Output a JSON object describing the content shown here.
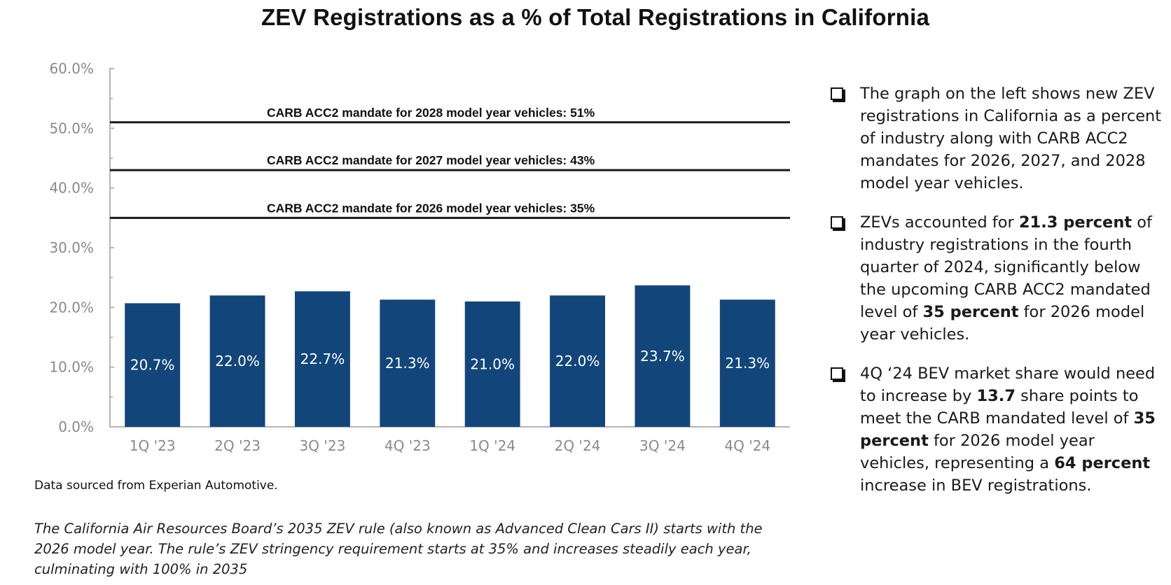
{
  "title": "ZEV Registrations as a % of Total Registrations in California",
  "chart_data": {
    "type": "bar",
    "categories": [
      "1Q '23",
      "2Q '23",
      "3Q '23",
      "4Q '23",
      "1Q '24",
      "2Q '24",
      "3Q '24",
      "4Q '24"
    ],
    "values": [
      20.7,
      22.0,
      22.7,
      21.3,
      21.0,
      22.0,
      23.7,
      21.3
    ],
    "value_labels": [
      "20.7%",
      "22.0%",
      "22.7%",
      "21.3%",
      "21.0%",
      "22.0%",
      "23.7%",
      "21.3%"
    ],
    "ylim": [
      0,
      60
    ],
    "yticks": [
      "0.0%",
      "10.0%",
      "20.0%",
      "30.0%",
      "40.0%",
      "50.0%",
      "60.0%"
    ],
    "bar_color": "#12467a",
    "reference_lines": [
      {
        "value": 51,
        "label": "CARB ACC2 mandate for 2028 model year vehicles: 51%"
      },
      {
        "value": 43,
        "label": "CARB ACC2 mandate for 2027 model year vehicles: 43%"
      },
      {
        "value": 35,
        "label": "CARB ACC2 mandate for 2026 model year vehicles: 35%"
      }
    ]
  },
  "source": "Data sourced from Experian Automotive.",
  "note": "The California Air Resources Board’s 2035 ZEV rule (also known as Advanced Clean Cars II) starts with the 2026 model year. The rule’s ZEV stringency requirement starts at 35% and increases steadily each year, culminating with 100% in 2035",
  "bullets": [
    {
      "parts": [
        {
          "text": "The graph on the left shows new ZEV registrations in California as a percent of industry along with CARB ACC2 mandates for 2026, 2027, and 2028 model year vehicles.",
          "bold": false
        }
      ]
    },
    {
      "parts": [
        {
          "text": "ZEVs accounted for ",
          "bold": false
        },
        {
          "text": "21.3 percent",
          "bold": true
        },
        {
          "text": " of industry registrations in the fourth quarter of 2024, significantly below the upcoming CARB ACC2 mandated level of ",
          "bold": false
        },
        {
          "text": "35 percent",
          "bold": true
        },
        {
          "text": " for 2026 model year vehicles.",
          "bold": false
        }
      ]
    },
    {
      "parts": [
        {
          "text": "4Q ‘24 BEV market share would need to increase by ",
          "bold": false
        },
        {
          "text": "13.7",
          "bold": true
        },
        {
          "text": " share points to meet the CARB mandated level of ",
          "bold": false
        },
        {
          "text": "35 percent",
          "bold": true
        },
        {
          "text": " for 2026 model year vehicles, representing a ",
          "bold": false
        },
        {
          "text": "64 percent",
          "bold": true
        },
        {
          "text": " increase in BEV registrations.",
          "bold": false
        }
      ]
    }
  ]
}
